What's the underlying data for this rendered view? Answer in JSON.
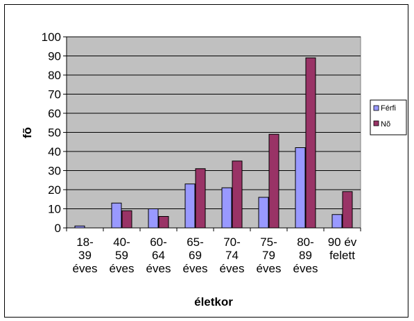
{
  "chart_data": {
    "type": "bar",
    "categories": [
      [
        "18-",
        "39",
        "éves"
      ],
      [
        "40-",
        "59",
        "éves"
      ],
      [
        "60-",
        "64",
        "éves"
      ],
      [
        "65-",
        "69",
        "éves"
      ],
      [
        "70-",
        "74",
        "éves"
      ],
      [
        "75-",
        "79",
        "éves"
      ],
      [
        "80-",
        "89",
        "éves"
      ],
      [
        "90 év",
        "felett"
      ]
    ],
    "series": [
      {
        "name": "Férfi",
        "color": "#9999ff",
        "values": [
          1,
          13,
          10,
          23,
          21,
          16,
          42,
          7
        ]
      },
      {
        "name": "Nõ",
        "color": "#993366",
        "values": [
          0,
          9,
          6,
          31,
          35,
          49,
          89,
          19
        ]
      }
    ],
    "xlabel": "életkor",
    "ylabel": "fõ",
    "ylim": [
      0,
      100
    ],
    "yticks": [
      0,
      10,
      20,
      30,
      40,
      50,
      60,
      70,
      80,
      90,
      100
    ],
    "grid": true,
    "legend": "right",
    "plot_background": "#c0c0c0"
  }
}
